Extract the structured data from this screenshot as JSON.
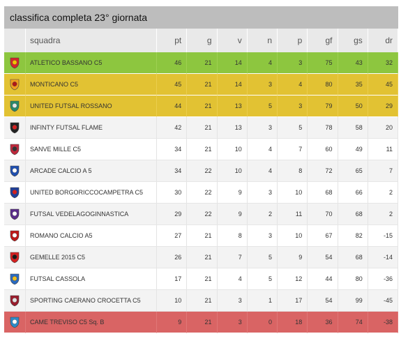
{
  "header": {
    "title": "classifica completa 23° giornata"
  },
  "columns": [
    "squadra",
    "pt",
    "g",
    "v",
    "n",
    "p",
    "gf",
    "gs",
    "dr"
  ],
  "rows": [
    {
      "team": "ATLETICO BASSANO C5",
      "pt": "46",
      "g": "21",
      "v": "14",
      "n": "4",
      "p": "3",
      "gf": "75",
      "gs": "43",
      "dr": "32",
      "zone": "green",
      "icon": "atletico-bassano-crest-icon",
      "c1": "#d4252a",
      "c2": "#f2c300"
    },
    {
      "team": "MONTICANO C5",
      "pt": "45",
      "g": "21",
      "v": "14",
      "n": "3",
      "p": "4",
      "gf": "80",
      "gs": "35",
      "dr": "45",
      "zone": "yellow",
      "icon": "monticano-crest-icon",
      "c1": "#f0a020",
      "c2": "#b01818"
    },
    {
      "team": "UNITED FUTSAL ROSSANO",
      "pt": "44",
      "g": "21",
      "v": "13",
      "n": "5",
      "p": "3",
      "gf": "79",
      "gs": "50",
      "dr": "29",
      "zone": "yellow",
      "icon": "united-rossano-crest-icon",
      "c1": "#2a8a6a",
      "c2": "#e8e8e8"
    },
    {
      "team": "INFINTY FUTSAL FLAME",
      "pt": "42",
      "g": "21",
      "v": "13",
      "n": "3",
      "p": "5",
      "gf": "78",
      "gs": "58",
      "dr": "20",
      "zone": "",
      "icon": "infinity-flame-crest-icon",
      "c1": "#222222",
      "c2": "#d42020"
    },
    {
      "team": "SANVE MILLE C5",
      "pt": "34",
      "g": "21",
      "v": "10",
      "n": "4",
      "p": "7",
      "gf": "60",
      "gs": "49",
      "dr": "11",
      "zone": "",
      "icon": "sanve-mille-crest-icon",
      "c1": "#c0283c",
      "c2": "#333333"
    },
    {
      "team": "ARCADE CALCIO A 5",
      "pt": "34",
      "g": "22",
      "v": "10",
      "n": "4",
      "p": "8",
      "gf": "72",
      "gs": "65",
      "dr": "7",
      "zone": "",
      "icon": "arcade-crest-icon",
      "c1": "#1f4fb0",
      "c2": "#ffffff"
    },
    {
      "team": "UNITED BORGORICCOCAMPETRA C5",
      "pt": "30",
      "g": "22",
      "v": "9",
      "n": "3",
      "p": "10",
      "gf": "68",
      "gs": "66",
      "dr": "2",
      "zone": "",
      "icon": "united-borgoricco-crest-icon",
      "c1": "#1f3f9a",
      "c2": "#d42020"
    },
    {
      "team": "FUTSAL VEDELAGOGINNASTICA",
      "pt": "29",
      "g": "22",
      "v": "9",
      "n": "2",
      "p": "11",
      "gf": "70",
      "gs": "68",
      "dr": "2",
      "zone": "",
      "icon": "futsal-vedelago-crest-icon",
      "c1": "#5a2d8a",
      "c2": "#ffffff"
    },
    {
      "team": "ROMANO CALCIO A5",
      "pt": "27",
      "g": "21",
      "v": "8",
      "n": "3",
      "p": "10",
      "gf": "67",
      "gs": "82",
      "dr": "-15",
      "zone": "",
      "icon": "romano-calcio-crest-icon",
      "c1": "#c01818",
      "c2": "#ffffff"
    },
    {
      "team": "GEMELLE 2015 C5",
      "pt": "26",
      "g": "21",
      "v": "7",
      "n": "5",
      "p": "9",
      "gf": "54",
      "gs": "68",
      "dr": "-14",
      "zone": "",
      "icon": "gemelle-crest-icon",
      "c1": "#d42020",
      "c2": "#1a1a1a"
    },
    {
      "team": "FUTSAL CASSOLA",
      "pt": "17",
      "g": "21",
      "v": "4",
      "n": "5",
      "p": "12",
      "gf": "44",
      "gs": "80",
      "dr": "-36",
      "zone": "",
      "icon": "futsal-cassola-crest-icon",
      "c1": "#2a6ac0",
      "c2": "#f0c020"
    },
    {
      "team": "SPORTING CAERANO CROCETTA C5",
      "pt": "10",
      "g": "21",
      "v": "3",
      "n": "1",
      "p": "17",
      "gf": "54",
      "gs": "99",
      "dr": "-45",
      "zone": "",
      "icon": "sporting-caerano-crest-icon",
      "c1": "#9a1c2c",
      "c2": "#e0e0e0"
    },
    {
      "team": "CAME TREVISO C5 Sq. B",
      "pt": "9",
      "g": "21",
      "v": "3",
      "n": "0",
      "p": "18",
      "gf": "36",
      "gs": "74",
      "dr": "-38",
      "zone": "red",
      "icon": "came-treviso-crest-icon",
      "c1": "#2a8ac8",
      "c2": "#ffffff"
    }
  ]
}
